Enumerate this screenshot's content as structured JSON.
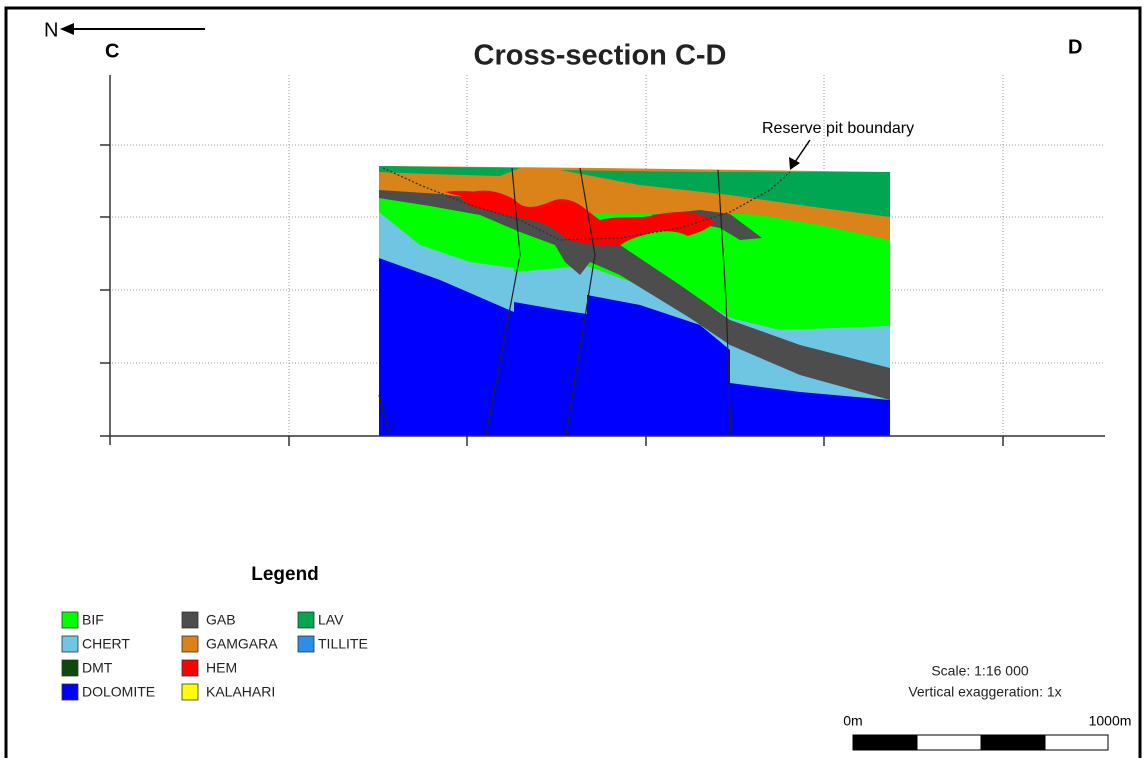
{
  "header": {
    "north": "N",
    "left_label": "C",
    "right_label": "D",
    "title": "Cross-section C-D"
  },
  "annotation": "Reserve pit boundary",
  "legend": {
    "title": "Legend",
    "items": [
      {
        "label": "BIF",
        "color": "#00ff00"
      },
      {
        "label": "GAB",
        "color": "#4d4d4d"
      },
      {
        "label": "LAV",
        "color": "#00a651"
      },
      {
        "label": "CHERT",
        "color": "#6ec6e3"
      },
      {
        "label": "GAMGARA",
        "color": "#d98319"
      },
      {
        "label": "TILLITE",
        "color": "#2b8fe8"
      },
      {
        "label": "DMT",
        "color": "#0b4a0b"
      },
      {
        "label": "HEM",
        "color": "#ff0000"
      },
      {
        "label": "DOLOMITE",
        "color": "#0000ff"
      },
      {
        "label": "KALAHARI",
        "color": "#ffff00"
      }
    ]
  },
  "scale": {
    "ratio": "Scale: 1:16 000",
    "exaggeration": "Vertical exaggeration: 1x",
    "start_label": "0m",
    "end_label": "1000m"
  }
}
